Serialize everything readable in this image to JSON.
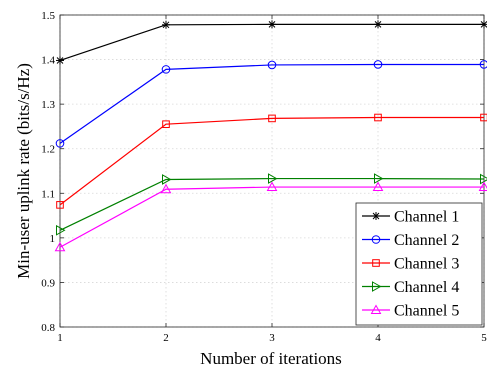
{
  "chart_data": {
    "type": "line",
    "title": "",
    "xlabel": "Number of iterations",
    "ylabel": "Min-user uplink rate (bits/s/Hz)",
    "x": [
      1,
      2,
      3,
      4,
      5
    ],
    "xlim": [
      1,
      5
    ],
    "ylim": [
      0.8,
      1.5
    ],
    "xticks": [
      1,
      2,
      3,
      4,
      5
    ],
    "yticks": [
      0.8,
      0.9,
      1,
      1.1,
      1.2,
      1.3,
      1.4,
      1.5
    ],
    "xtick_labels": [
      "1",
      "2",
      "3",
      "4",
      "5"
    ],
    "ytick_labels": [
      "0.8",
      "0.9",
      "1",
      "1.1",
      "1.2",
      "1.3",
      "1.4",
      "1.5"
    ],
    "grid": true,
    "legend_position": "bottom-right",
    "series": [
      {
        "name": "Channel 1",
        "color": "#000000",
        "marker": "asterisk",
        "values": [
          1.398,
          1.478,
          1.479,
          1.479,
          1.479
        ]
      },
      {
        "name": "Channel 2",
        "color": "#0000ff",
        "marker": "circle",
        "values": [
          1.212,
          1.378,
          1.388,
          1.389,
          1.389
        ]
      },
      {
        "name": "Channel 3",
        "color": "#ff0000",
        "marker": "square",
        "values": [
          1.074,
          1.255,
          1.268,
          1.27,
          1.27
        ]
      },
      {
        "name": "Channel 4",
        "color": "#008000",
        "marker": "triangle-right",
        "values": [
          1.017,
          1.131,
          1.133,
          1.133,
          1.132
        ]
      },
      {
        "name": "Channel 5",
        "color": "#ff00ff",
        "marker": "triangle-up",
        "values": [
          0.979,
          1.109,
          1.114,
          1.114,
          1.114
        ]
      }
    ]
  }
}
